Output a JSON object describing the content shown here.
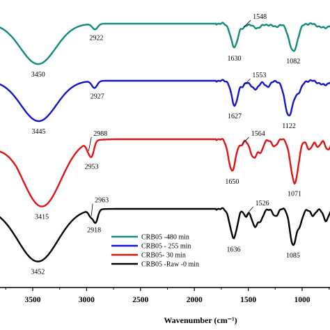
{
  "chart_data": {
    "type": "line",
    "title": "",
    "xlabel": "Wavenumber (cm⁻¹)",
    "ylabel": "",
    "xlim": [
      3950,
      650
    ],
    "x_reversed": true,
    "xticks": [
      3500,
      3000,
      2500,
      2000,
      1500,
      1000
    ],
    "tick_labels": [
      "3500",
      "3000",
      "2500",
      "2000",
      "1500",
      "1000"
    ],
    "legend_position": "bottom-center",
    "series": [
      {
        "name": "CRB05 -480 min",
        "color": "#138a7e",
        "peaks": [
          {
            "x": 3450,
            "label": "3450"
          },
          {
            "x": 2922,
            "label": "2922"
          },
          {
            "x": 1630,
            "label": "1630"
          },
          {
            "x": 1548,
            "label": "1548"
          },
          {
            "x": 1082,
            "label": "1082"
          }
        ]
      },
      {
        "name": "CRB05 - 255 min",
        "color": "#1414c8",
        "peaks": [
          {
            "x": 3445,
            "label": "3445"
          },
          {
            "x": 2927,
            "label": "2927"
          },
          {
            "x": 1627,
            "label": "1627"
          },
          {
            "x": 1553,
            "label": "1553"
          },
          {
            "x": 1122,
            "label": "1122"
          }
        ]
      },
      {
        "name": "CRB05- 30 min",
        "color": "#e01414",
        "peaks": [
          {
            "x": 3415,
            "label": "3415"
          },
          {
            "x": 2988,
            "label": "2988"
          },
          {
            "x": 2953,
            "label": "2953"
          },
          {
            "x": 1650,
            "label": "1650"
          },
          {
            "x": 1564,
            "label": "1564"
          },
          {
            "x": 1071,
            "label": "1071"
          }
        ]
      },
      {
        "name": "CRB05 -Raw -0 min",
        "color": "#000000",
        "peaks": [
          {
            "x": 3452,
            "label": "3452"
          },
          {
            "x": 2963,
            "label": "2963"
          },
          {
            "x": 2918,
            "label": "2918"
          },
          {
            "x": 1636,
            "label": "1636"
          },
          {
            "x": 1526,
            "label": "1526"
          },
          {
            "x": 1085,
            "label": "1085"
          }
        ]
      }
    ]
  }
}
